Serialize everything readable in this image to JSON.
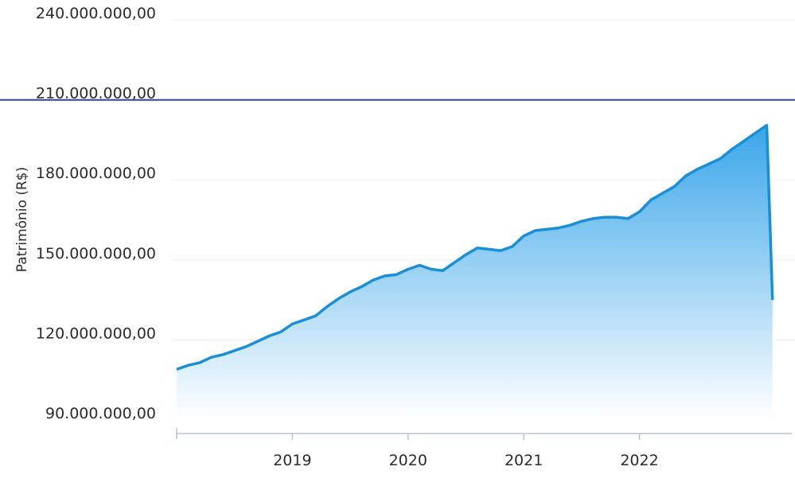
{
  "chart_data": {
    "type": "area",
    "ylabel": "Patrimônio (R$)",
    "xlabel": "",
    "title": "",
    "x_tick_labels": [
      "2019",
      "2020",
      "2021",
      "2022"
    ],
    "x_ticks": [
      2019,
      2020,
      2021,
      2022
    ],
    "y_tick_labels": [
      "90.000.000,00",
      "120.000.000,00",
      "150.000.000,00",
      "180.000.000,00",
      "210.000.000,00",
      "240.000.000,00"
    ],
    "y_ticks": [
      90000000,
      120000000,
      150000000,
      180000000,
      210000000,
      240000000
    ],
    "xlim": [
      2018.0,
      2023.2
    ],
    "ylim": [
      90000000,
      240000000
    ],
    "reference_line": {
      "y": 210000000,
      "color": "#2c3e8f"
    },
    "grid": true,
    "colors": {
      "line": "#1a8fd6",
      "fill_top": "#3aa6ea",
      "fill_bottom": "#ffffff"
    },
    "x": [
      2018.0,
      2018.1,
      2018.2,
      2018.3,
      2018.4,
      2018.5,
      2018.6,
      2018.7,
      2018.8,
      2018.9,
      2019.0,
      2019.1,
      2019.2,
      2019.3,
      2019.4,
      2019.5,
      2019.6,
      2019.7,
      2019.8,
      2019.9,
      2020.0,
      2020.1,
      2020.2,
      2020.3,
      2020.4,
      2020.5,
      2020.6,
      2020.7,
      2020.8,
      2020.9,
      2021.0,
      2021.1,
      2021.2,
      2021.3,
      2021.4,
      2021.5,
      2021.6,
      2021.7,
      2021.8,
      2021.9,
      2022.0,
      2022.1,
      2022.2,
      2022.3,
      2022.4,
      2022.5,
      2022.6,
      2022.7,
      2022.8,
      2022.9,
      2023.0,
      2023.1,
      2023.15
    ],
    "values": [
      109000000,
      110500000,
      111500000,
      113500000,
      114500000,
      116000000,
      117500000,
      119500000,
      121500000,
      123000000,
      126000000,
      127500000,
      129000000,
      132500000,
      135500000,
      138000000,
      140000000,
      142500000,
      144000000,
      144500000,
      146500000,
      148000000,
      146500000,
      146000000,
      149000000,
      152000000,
      154500000,
      154000000,
      153500000,
      155000000,
      159000000,
      161000000,
      161500000,
      162000000,
      163000000,
      164500000,
      165500000,
      166000000,
      166000000,
      165500000,
      168000000,
      172500000,
      175000000,
      177500000,
      181500000,
      184000000,
      186000000,
      188000000,
      191500000,
      194500000,
      197500000,
      200500000,
      135000000
    ]
  }
}
